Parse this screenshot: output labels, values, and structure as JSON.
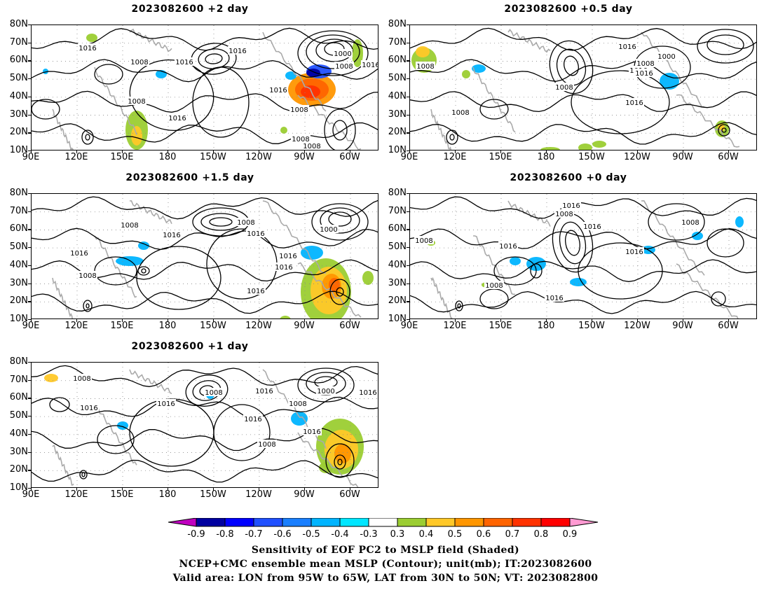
{
  "panels": [
    {
      "title": "2023082600  +2  day",
      "labels": [
        "1016",
        "1008",
        "1016",
        "1008",
        "1016",
        "1016",
        "1008",
        "1000",
        "1008",
        "1016",
        "1016",
        "1008",
        "1008"
      ]
    },
    {
      "title": "2023082600  +0.5  day",
      "labels": [
        "1008",
        "1008",
        "1016",
        "1008",
        "1016",
        "1008",
        "1000",
        "1016",
        "1016"
      ]
    },
    {
      "title": "2023082600  +1.5  day",
      "labels": [
        "1008",
        "1016",
        "1016",
        "1008",
        "1016",
        "1008",
        "1016",
        "1000",
        "1016",
        "1016"
      ]
    },
    {
      "title": "2023082600  +0  day",
      "labels": [
        "1008",
        "1016",
        "1008",
        "1016",
        "1016",
        "1008",
        "1016",
        "1008",
        "1016"
      ]
    },
    {
      "title": "2023082600  +1  day",
      "labels": [
        "1008",
        "1016",
        "1016",
        "1008",
        "1016",
        "1016",
        "1008",
        "1000",
        "1008",
        "1016",
        "1016"
      ]
    }
  ],
  "axes": {
    "lat_labels": [
      "80N",
      "70N",
      "60N",
      "50N",
      "40N",
      "30N",
      "20N",
      "10N"
    ],
    "lon_labels": [
      "90E",
      "120E",
      "150E",
      "180",
      "150W",
      "120W",
      "90W",
      "60W"
    ]
  },
  "colorbar": {
    "labels": [
      "-0.9",
      "-0.8",
      "-0.7",
      "-0.6",
      "-0.5",
      "-0.4",
      "-0.3",
      "0.3",
      "0.4",
      "0.5",
      "0.6",
      "0.7",
      "0.8",
      "0.9"
    ],
    "colors": [
      "#c000c0",
      "#0000a0",
      "#0000ff",
      "#2050ff",
      "#1a7fff",
      "#00b4ff",
      "#00e6ff",
      "#ffffff",
      "#9bcd32",
      "#ffc828",
      "#ff9600",
      "#ff6400",
      "#ff3200",
      "#ff0000",
      "#ff9ad2"
    ]
  },
  "caption": {
    "line1": "Sensitivity of EOF PC2 to MSLP field (Shaded)",
    "line2": "NCEP+CMC ensemble mean MSLP (Contour); unit(mb); IT:2023082600",
    "line3": "Valid area: LON from 95W to 65W, LAT from 30N to 50N; VT: 2023082800"
  }
}
